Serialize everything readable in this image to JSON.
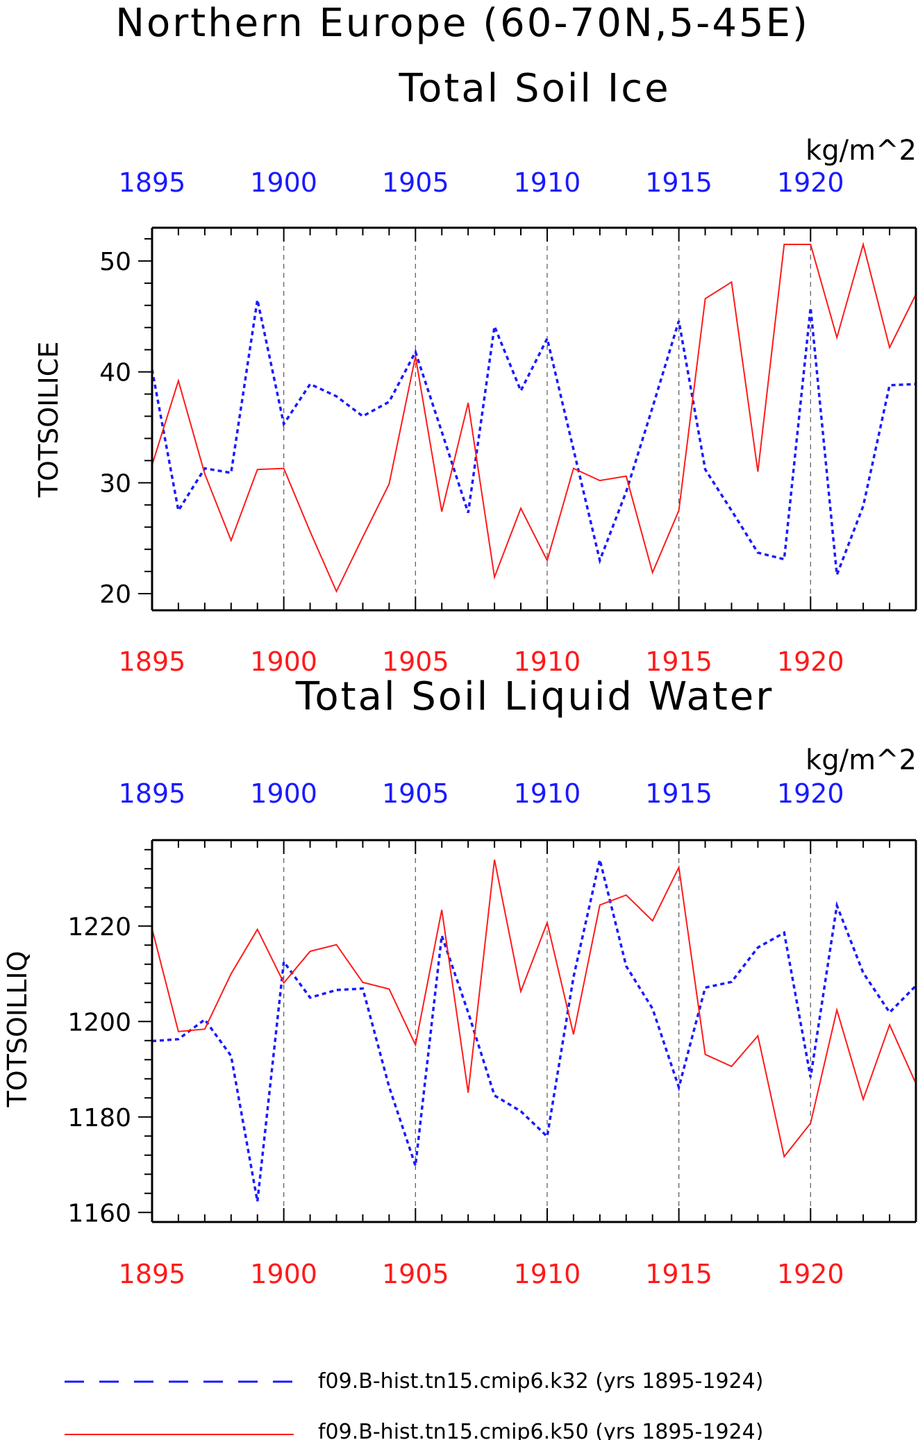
{
  "figure": {
    "title": "Northern Europe (60-70N,5-45E)"
  },
  "legend": [
    {
      "label": "f09.B-hist.tn15.cmip6.k32 (yrs 1895-1924)",
      "color": "#1a1aff",
      "style": "dashed"
    },
    {
      "label": "f09.B-hist.tn15.cmip6.k50 (yrs 1895-1924)",
      "color": "#ff1a1a",
      "style": "solid"
    }
  ],
  "chart_data": [
    {
      "type": "line",
      "title": "Total Soil Ice",
      "units": "kg/m^2",
      "ylabel": "TOTSOILICE",
      "xlim": [
        1895,
        1924
      ],
      "ylim": [
        18.5,
        53
      ],
      "x_ticks": [
        1895,
        1900,
        1905,
        1910,
        1915,
        1920
      ],
      "y_ticks": [
        20,
        30,
        40,
        50
      ],
      "y_minor_step": 2,
      "x": [
        1895,
        1896,
        1897,
        1898,
        1899,
        1900,
        1901,
        1902,
        1903,
        1904,
        1905,
        1906,
        1907,
        1908,
        1909,
        1910,
        1911,
        1912,
        1913,
        1914,
        1915,
        1916,
        1917,
        1918,
        1919,
        1920,
        1921,
        1922,
        1923,
        1924
      ],
      "series": [
        {
          "name": "f09.B-hist.tn15.cmip6.k32",
          "color": "#1a1aff",
          "style": "dashed",
          "values": [
            40.2,
            27.5,
            31.3,
            30.9,
            46.5,
            35.3,
            38.9,
            37.8,
            36.0,
            37.3,
            41.8,
            34.6,
            27.3,
            44.1,
            38.3,
            43.0,
            33.0,
            23.0,
            29.2,
            36.8,
            44.6,
            31.2,
            27.5,
            23.7,
            23.1,
            45.8,
            21.7,
            27.9,
            38.8,
            38.9
          ]
        },
        {
          "name": "f09.B-hist.tn15.cmip6.k50",
          "color": "#ff1a1a",
          "style": "solid",
          "values": [
            31.6,
            39.2,
            30.8,
            24.8,
            31.2,
            31.3,
            25.6,
            20.2,
            25.1,
            29.9,
            41.4,
            27.4,
            37.2,
            21.5,
            27.7,
            23.0,
            31.3,
            30.2,
            30.6,
            21.9,
            27.5,
            46.6,
            48.1,
            31.0,
            51.5,
            51.5,
            43.1,
            51.5,
            42.2,
            47.0
          ]
        }
      ]
    },
    {
      "type": "line",
      "title": "Total Soil Liquid Water",
      "units": "kg/m^2",
      "ylabel": "TOTSOILLIQ",
      "xlim": [
        1895,
        1924
      ],
      "ylim": [
        1158,
        1238
      ],
      "x_ticks": [
        1895,
        1900,
        1905,
        1910,
        1915,
        1920
      ],
      "y_ticks": [
        1160,
        1180,
        1200,
        1220
      ],
      "y_minor_step": 4,
      "x": [
        1895,
        1896,
        1897,
        1898,
        1899,
        1900,
        1901,
        1902,
        1903,
        1904,
        1905,
        1906,
        1907,
        1908,
        1909,
        1910,
        1911,
        1912,
        1913,
        1914,
        1915,
        1916,
        1917,
        1918,
        1919,
        1920,
        1921,
        1922,
        1923,
        1924
      ],
      "series": [
        {
          "name": "f09.B-hist.tn15.cmip6.k32",
          "color": "#1a1aff",
          "style": "dashed",
          "values": [
            1195.9,
            1196.3,
            1200.4,
            1192.8,
            1162.3,
            1212.5,
            1205.0,
            1206.6,
            1206.9,
            1186.3,
            1169.8,
            1218.0,
            1201.9,
            1184.5,
            1181.2,
            1175.9,
            1209.3,
            1233.9,
            1211.6,
            1202.7,
            1186.2,
            1207.1,
            1208.3,
            1215.5,
            1218.6,
            1188.3,
            1224.3,
            1210.2,
            1201.9,
            1207.5
          ]
        },
        {
          "name": "f09.B-hist.tn15.cmip6.k50",
          "color": "#ff1a1a",
          "style": "solid",
          "values": [
            1219.4,
            1197.9,
            1198.4,
            1210.0,
            1219.3,
            1208.1,
            1214.7,
            1216.1,
            1208.2,
            1206.8,
            1195.1,
            1223.4,
            1185.1,
            1233.9,
            1206.3,
            1220.7,
            1197.3,
            1224.4,
            1226.5,
            1221.1,
            1232.3,
            1193.1,
            1190.6,
            1197.0,
            1171.7,
            1178.7,
            1202.4,
            1183.7,
            1199.3,
            1187.0
          ]
        }
      ]
    }
  ]
}
